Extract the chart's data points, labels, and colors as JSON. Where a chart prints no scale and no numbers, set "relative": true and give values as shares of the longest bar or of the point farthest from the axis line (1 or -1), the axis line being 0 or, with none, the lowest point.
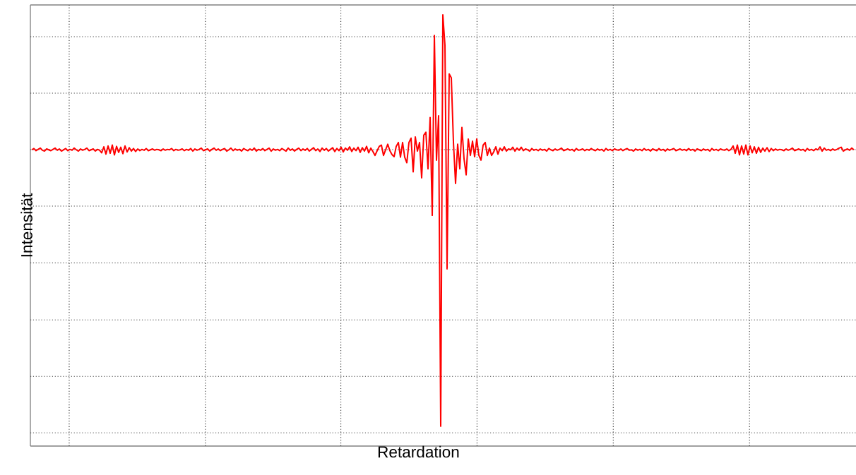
{
  "chart_data": {
    "type": "line",
    "relative": true,
    "xlabel": "Retardation",
    "ylabel": "Intensität",
    "grid": true,
    "marker": "none",
    "line_style": "solid",
    "categories": [
      null,
      null,
      null,
      null,
      null,
      null,
      null,
      null,
      null,
      null,
      null,
      null,
      null,
      null,
      null,
      null,
      null,
      null,
      null,
      null,
      null,
      null,
      null,
      null,
      null,
      null,
      null,
      null,
      null,
      null,
      null,
      null,
      null,
      null,
      null,
      null,
      null,
      null,
      null,
      null,
      null,
      null,
      null,
      null,
      null,
      null,
      null,
      null,
      null,
      null,
      null,
      null,
      null,
      null,
      null,
      null,
      null,
      null,
      null,
      null,
      null,
      null,
      null,
      null,
      null,
      null,
      null,
      null,
      null,
      null,
      null,
      null,
      null,
      null,
      null,
      null,
      null,
      null,
      null,
      null,
      null,
      null,
      null,
      null,
      null,
      null,
      null,
      null,
      null,
      null,
      null,
      null,
      null,
      null,
      null,
      null,
      null,
      null,
      null,
      null,
      null,
      null,
      null,
      null,
      null,
      null,
      null,
      null,
      null,
      null,
      null,
      null,
      null,
      null,
      null,
      null,
      null,
      null,
      null,
      null,
      null,
      null,
      null,
      null,
      null,
      null,
      null,
      null,
      null,
      null,
      null,
      null,
      null,
      null,
      null,
      null,
      null,
      null,
      null,
      null,
      null,
      null,
      null,
      null,
      null,
      null,
      null,
      null,
      null,
      null,
      null,
      null,
      null,
      null,
      null,
      null,
      null,
      null,
      null,
      null,
      null,
      null,
      null,
      null,
      null,
      null,
      null,
      null,
      null,
      null,
      null,
      null,
      null,
      null,
      null,
      null,
      null,
      null,
      null,
      null,
      null,
      null,
      null,
      null,
      null,
      null,
      null,
      null,
      null,
      null,
      null,
      null,
      null,
      null,
      null,
      null,
      null,
      null,
      null,
      null,
      null,
      null,
      null,
      null,
      null,
      null,
      null,
      null,
      null,
      null,
      null,
      null,
      null,
      null,
      null,
      null,
      null,
      null,
      null,
      null,
      null,
      null,
      null,
      null,
      null,
      null,
      null,
      null,
      null,
      null,
      null,
      null,
      null,
      null,
      null,
      null,
      null,
      null,
      null,
      null,
      null,
      null,
      null,
      null,
      null,
      null,
      null,
      null,
      null,
      null,
      null,
      null,
      null,
      null,
      null,
      null,
      null,
      null,
      null,
      null,
      null,
      null,
      null,
      null,
      null,
      null,
      null,
      null,
      null,
      null,
      null,
      null,
      null,
      null,
      null,
      null,
      null,
      null,
      null,
      null,
      null,
      null,
      null,
      null,
      null,
      null,
      null,
      null,
      null,
      null,
      null,
      null,
      null,
      null,
      null,
      null,
      null,
      null,
      null,
      null,
      null,
      null,
      null,
      null,
      null,
      null,
      null,
      null,
      null,
      null,
      null,
      null,
      null,
      null,
      null,
      null,
      null,
      null,
      null,
      null,
      null,
      null,
      null,
      null,
      null,
      null,
      null,
      null,
      null,
      null,
      null,
      null,
      null,
      null,
      null,
      null,
      null,
      null,
      null,
      null,
      null,
      null,
      null,
      null,
      null,
      null,
      null,
      null,
      null,
      null,
      null,
      null,
      null,
      null,
      null,
      null,
      null,
      null,
      null,
      null,
      null,
      null,
      null,
      null,
      null,
      null,
      null,
      null,
      null,
      null,
      null,
      null,
      null,
      null,
      null,
      null,
      null,
      null,
      null,
      null,
      null,
      null,
      null,
      null,
      null,
      null,
      null,
      null,
      null
    ],
    "series": [
      {
        "color": "#ff0000",
        "values": [
          0.687,
          0.69,
          0.685,
          0.688,
          0.691,
          0.686,
          0.684,
          0.689,
          0.687,
          0.685,
          0.688,
          0.691,
          0.686,
          0.689,
          0.684,
          0.687,
          0.69,
          0.685,
          0.688,
          0.686,
          0.691,
          0.687,
          0.684,
          0.689,
          0.686,
          0.688,
          0.691,
          0.685,
          0.687,
          0.689,
          0.684,
          0.688,
          0.686,
          0.68,
          0.694,
          0.677,
          0.696,
          0.679,
          0.698,
          0.675,
          0.695,
          0.681,
          0.693,
          0.678,
          0.696,
          0.682,
          0.692,
          0.684,
          0.69,
          0.683,
          0.689,
          0.685,
          0.688,
          0.686,
          0.69,
          0.685,
          0.687,
          0.689,
          0.686,
          0.688,
          0.687,
          0.685,
          0.689,
          0.686,
          0.688,
          0.687,
          0.69,
          0.685,
          0.688,
          0.686,
          0.687,
          0.689,
          0.685,
          0.688,
          0.686,
          0.69,
          0.684,
          0.689,
          0.686,
          0.688,
          0.691,
          0.685,
          0.687,
          0.689,
          0.684,
          0.688,
          0.691,
          0.686,
          0.689,
          0.685,
          0.688,
          0.69,
          0.684,
          0.687,
          0.691,
          0.685,
          0.689,
          0.686,
          0.688,
          0.684,
          0.69,
          0.687,
          0.685,
          0.689,
          0.686,
          0.691,
          0.684,
          0.688,
          0.686,
          0.69,
          0.685,
          0.688,
          0.691,
          0.684,
          0.689,
          0.686,
          0.688,
          0.685,
          0.69,
          0.687,
          0.684,
          0.691,
          0.686,
          0.689,
          0.684,
          0.688,
          0.691,
          0.685,
          0.689,
          0.686,
          0.69,
          0.684,
          0.688,
          0.692,
          0.685,
          0.689,
          0.683,
          0.691,
          0.686,
          0.69,
          0.684,
          0.688,
          0.692,
          0.683,
          0.69,
          0.685,
          0.693,
          0.682,
          0.691,
          0.686,
          0.694,
          0.683,
          0.691,
          0.685,
          0.693,
          0.681,
          0.692,
          0.684,
          0.695,
          0.68,
          0.691,
          0.683,
          0.674,
          0.685,
          0.695,
          0.698,
          0.674,
          0.687,
          0.7,
          0.685,
          0.676,
          0.671,
          0.695,
          0.704,
          0.67,
          0.704,
          0.67,
          0.657,
          0.704,
          0.714,
          0.636,
          0.717,
          0.684,
          0.704,
          0.622,
          0.721,
          0.728,
          0.643,
          0.762,
          0.535,
          0.952,
          0.663,
          0.766,
          0.046,
          1,
          0.929,
          0.411,
          0.863,
          0.854,
          0.704,
          0.609,
          0.7,
          0.643,
          0.739,
          0.666,
          0.629,
          0.712,
          0.674,
          0.707,
          0.671,
          0.712,
          0.674,
          0.663,
          0.698,
          0.704,
          0.674,
          0.691,
          0.674,
          0.682,
          0.694,
          0.677,
          0.691,
          0.685,
          0.694,
          0.684,
          0.689,
          0.687,
          0.693,
          0.684,
          0.691,
          0.686,
          0.693,
          0.685,
          0.689,
          0.687,
          0.684,
          0.69,
          0.686,
          0.688,
          0.685,
          0.689,
          0.686,
          0.688,
          0.684,
          0.69,
          0.687,
          0.685,
          0.689,
          0.686,
          0.688,
          0.691,
          0.685,
          0.687,
          0.689,
          0.686,
          0.688,
          0.684,
          0.69,
          0.686,
          0.687,
          0.689,
          0.685,
          0.688,
          0.686,
          0.69,
          0.687,
          0.685,
          0.689,
          0.686,
          0.688,
          0.684,
          0.69,
          0.686,
          0.688,
          0.685,
          0.689,
          0.687,
          0.686,
          0.689,
          0.685,
          0.688,
          0.69,
          0.686,
          0.687,
          0.684,
          0.689,
          0.686,
          0.688,
          0.685,
          0.69,
          0.686,
          0.688,
          0.684,
          0.689,
          0.687,
          0.685,
          0.69,
          0.686,
          0.688,
          0.684,
          0.689,
          0.686,
          0.688,
          0.69,
          0.685,
          0.687,
          0.689,
          0.686,
          0.688,
          0.685,
          0.69,
          0.686,
          0.688,
          0.684,
          0.689,
          0.687,
          0.685,
          0.689,
          0.686,
          0.688,
          0.684,
          0.69,
          0.686,
          0.688,
          0.685,
          0.689,
          0.687,
          0.686,
          0.689,
          0.685,
          0.688,
          0.696,
          0.679,
          0.698,
          0.675,
          0.696,
          0.677,
          0.698,
          0.675,
          0.696,
          0.68,
          0.694,
          0.679,
          0.693,
          0.681,
          0.691,
          0.684,
          0.692,
          0.683,
          0.69,
          0.685,
          0.689,
          0.686,
          0.688,
          0.687,
          0.685,
          0.689,
          0.686,
          0.688,
          0.691,
          0.685,
          0.687,
          0.689,
          0.686,
          0.688,
          0.684,
          0.69,
          0.686,
          0.688,
          0.685,
          0.689,
          0.687,
          0.694,
          0.684,
          0.691,
          0.686,
          0.688,
          0.685,
          0.689,
          0.686,
          0.688,
          0.691,
          0.693,
          0.684,
          0.687,
          0.689,
          0.686,
          0.691,
          0.687
        ]
      }
    ]
  }
}
